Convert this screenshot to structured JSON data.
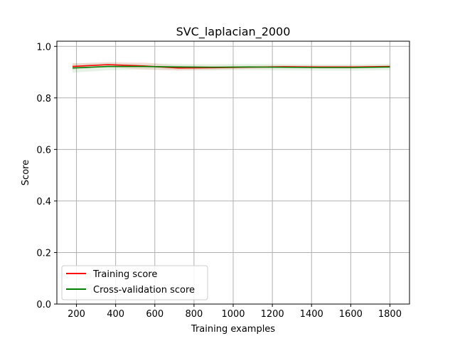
{
  "chart_data": {
    "type": "line",
    "title": "SVC_laplacian_2000",
    "xlabel": "Training examples",
    "ylabel": "Score",
    "xlim": [
      100,
      1900
    ],
    "ylim": [
      0.0,
      1.02
    ],
    "xticks": [
      200,
      400,
      600,
      800,
      1000,
      1200,
      1400,
      1600,
      1800
    ],
    "yticks": [
      0.0,
      0.2,
      0.4,
      0.6,
      0.8,
      1.0
    ],
    "xtick_labels": [
      "200",
      "400",
      "600",
      "800",
      "1000",
      "1200",
      "1400",
      "1600",
      "1800"
    ],
    "ytick_labels": [
      "0.0",
      "0.2",
      "0.4",
      "0.6",
      "0.8",
      "1.0"
    ],
    "grid": true,
    "legend_position": "lower-left",
    "x": [
      180,
      360,
      540,
      720,
      900,
      1080,
      1260,
      1440,
      1620,
      1800
    ],
    "series": [
      {
        "name": "Training score",
        "color": "#ff0000",
        "values": [
          0.922,
          0.929,
          0.924,
          0.916,
          0.917,
          0.919,
          0.921,
          0.92,
          0.92,
          0.922
        ],
        "band": [
          0.012,
          0.01,
          0.014,
          0.01,
          0.008,
          0.006,
          0.006,
          0.006,
          0.006,
          0.005
        ]
      },
      {
        "name": "Cross-validation score",
        "color": "#008000",
        "values": [
          0.916,
          0.922,
          0.922,
          0.92,
          0.919,
          0.92,
          0.919,
          0.918,
          0.918,
          0.92
        ],
        "band": [
          0.018,
          0.015,
          0.012,
          0.012,
          0.012,
          0.012,
          0.012,
          0.012,
          0.012,
          0.012
        ]
      }
    ]
  }
}
